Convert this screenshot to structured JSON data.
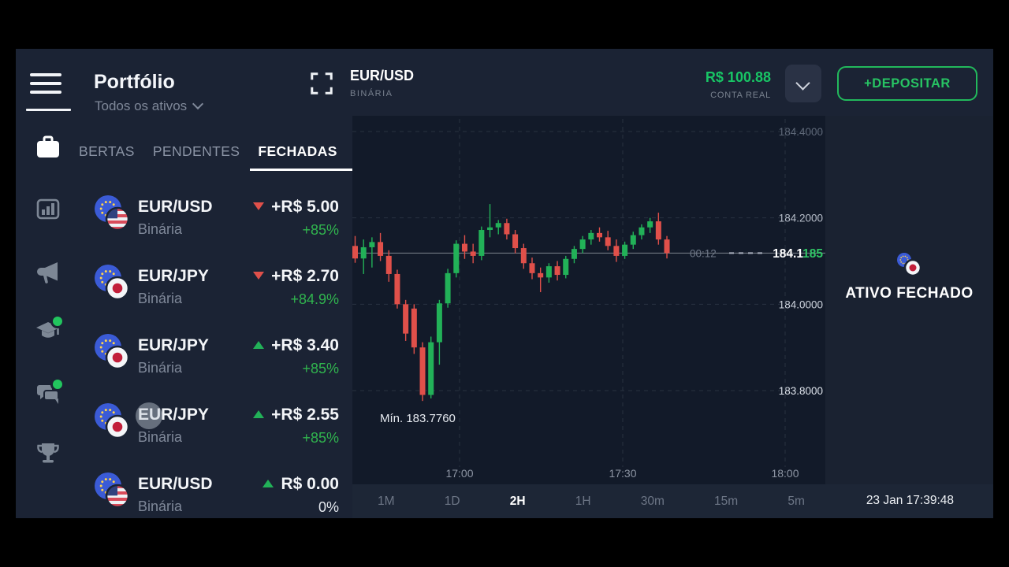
{
  "colors": {
    "accent_green": "#22b95c",
    "percent_green": "#30b44e",
    "neutral_percent": "#e4e8ee",
    "bull": "#22b158",
    "bear": "#e0504a",
    "grid": "#283140",
    "price_pips_green": "#2fc565"
  },
  "header": {
    "title": "Portfólio",
    "filter": "Todos os ativos",
    "symbol": "EUR/USD",
    "symbol_type": "BINÁRIA",
    "balance": "R$ 100.88",
    "account_label": "CONTA REAL",
    "deposit_label": "+DEPOSITAR"
  },
  "sidebar_icons": [
    {
      "name": "portfolio-briefcase-icon",
      "active": true,
      "dot": false
    },
    {
      "name": "market-chart-icon",
      "active": false,
      "dot": false
    },
    {
      "name": "promo-megaphone-icon",
      "active": false,
      "dot": false
    },
    {
      "name": "education-cap-icon",
      "active": false,
      "dot": true
    },
    {
      "name": "chat-icon",
      "active": false,
      "dot": true
    },
    {
      "name": "tournaments-trophy-icon",
      "active": false,
      "dot": false
    }
  ],
  "tabs": [
    {
      "label": "BERTAS",
      "active": false
    },
    {
      "label": "PENDENTES",
      "active": false
    },
    {
      "label": "FECHADAS",
      "active": true
    }
  ],
  "trades": [
    {
      "pair": "EUR/USD",
      "flags": [
        "eur",
        "usd"
      ],
      "type": "Binária",
      "direction": "down",
      "amount": "+R$ 5.00",
      "percent": "+85%",
      "win": true
    },
    {
      "pair": "EUR/JPY",
      "flags": [
        "eur",
        "jpy"
      ],
      "type": "Binária",
      "direction": "down",
      "amount": "+R$ 2.70",
      "percent": "+84.9%",
      "win": true
    },
    {
      "pair": "EUR/JPY",
      "flags": [
        "eur",
        "jpy"
      ],
      "type": "Binária",
      "direction": "up",
      "amount": "+R$ 3.40",
      "percent": "+85%",
      "win": true
    },
    {
      "pair": "EUR/JPY",
      "flags": [
        "eur",
        "jpy"
      ],
      "type": "Binária",
      "direction": "up",
      "amount": "+R$ 2.55",
      "percent": "+85%",
      "win": true
    },
    {
      "pair": "EUR/USD",
      "flags": [
        "eur",
        "usd"
      ],
      "type": "Binária",
      "direction": "up",
      "amount": "R$ 0.00",
      "percent": "0%",
      "win": false
    }
  ],
  "right_panel": {
    "label": "ATIVO FECHADO",
    "flags": [
      "eur",
      "jpy"
    ]
  },
  "footer": {
    "timeframes": [
      {
        "label": "1M",
        "active": false
      },
      {
        "label": "1D",
        "active": false
      },
      {
        "label": "2H",
        "active": true
      },
      {
        "label": "1H",
        "active": false
      },
      {
        "label": "30m",
        "active": false
      },
      {
        "label": "15m",
        "active": false
      },
      {
        "label": "5m",
        "active": false
      }
    ],
    "clock": "23 Jan 17:39:48"
  },
  "chart_data": {
    "type": "candlestick",
    "y_ticks": [
      {
        "label": "184.4000",
        "price": 184.4
      },
      {
        "label": "184.2000",
        "price": 184.2
      },
      {
        "label": "184.0000",
        "price": 184.0
      },
      {
        "label": "183.8000",
        "price": 183.8
      }
    ],
    "x_ticks": [
      {
        "label": "17:00",
        "x": 136
      },
      {
        "label": "17:30",
        "x": 343
      },
      {
        "label": "18:00",
        "x": 549
      }
    ],
    "price_map": {
      "price_a": 184.4,
      "y_a": 20,
      "price_b": 183.8,
      "y_b": 349
    },
    "current_price": {
      "value": 184.1185,
      "label_main": "184.1",
      "label_pips": "185",
      "countdown": "00:12"
    },
    "min_annotation": {
      "label": "Mín. 183.7760",
      "value": 183.776
    },
    "candles": [
      [
        184.135,
        184.158,
        184.096,
        184.106
      ],
      [
        184.106,
        184.15,
        184.07,
        184.132
      ],
      [
        184.132,
        184.155,
        184.085,
        184.144
      ],
      [
        184.144,
        184.165,
        184.1,
        184.112
      ],
      [
        184.112,
        184.125,
        184.052,
        184.07
      ],
      [
        184.07,
        184.08,
        183.99,
        184.0
      ],
      [
        184.0,
        184.01,
        183.915,
        183.932
      ],
      [
        183.99,
        184.0,
        183.885,
        183.9
      ],
      [
        183.9,
        183.912,
        183.776,
        183.79
      ],
      [
        183.79,
        183.925,
        183.782,
        183.912
      ],
      [
        183.912,
        184.01,
        183.86,
        184.002
      ],
      [
        184.002,
        184.082,
        183.992,
        184.072
      ],
      [
        184.072,
        184.148,
        184.062,
        184.14
      ],
      [
        184.14,
        184.16,
        184.105,
        184.122
      ],
      [
        184.122,
        184.14,
        184.095,
        184.112
      ],
      [
        184.112,
        184.18,
        184.102,
        184.172
      ],
      [
        184.172,
        184.232,
        184.155,
        184.178
      ],
      [
        184.178,
        184.195,
        184.162,
        184.188
      ],
      [
        184.188,
        184.198,
        184.15,
        184.162
      ],
      [
        184.162,
        184.172,
        184.118,
        184.13
      ],
      [
        184.13,
        184.14,
        184.082,
        184.095
      ],
      [
        184.095,
        184.108,
        184.058,
        184.072
      ],
      [
        184.072,
        184.085,
        184.028,
        184.062
      ],
      [
        184.062,
        184.095,
        184.05,
        184.088
      ],
      [
        184.088,
        184.1,
        184.055,
        184.068
      ],
      [
        184.068,
        184.112,
        184.06,
        184.105
      ],
      [
        184.105,
        184.135,
        184.095,
        184.128
      ],
      [
        184.128,
        184.158,
        184.118,
        184.15
      ],
      [
        184.15,
        184.172,
        184.138,
        184.165
      ],
      [
        184.165,
        184.178,
        184.145,
        184.155
      ],
      [
        184.155,
        184.17,
        184.125,
        184.135
      ],
      [
        184.135,
        184.15,
        184.098,
        184.112
      ],
      [
        184.112,
        184.145,
        184.105,
        184.138
      ],
      [
        184.138,
        184.168,
        184.128,
        184.16
      ],
      [
        184.16,
        184.185,
        184.15,
        184.178
      ],
      [
        184.178,
        184.2,
        184.165,
        184.192
      ],
      [
        184.192,
        184.212,
        184.138,
        184.15
      ],
      [
        184.15,
        184.158,
        184.106,
        184.1185
      ]
    ]
  }
}
